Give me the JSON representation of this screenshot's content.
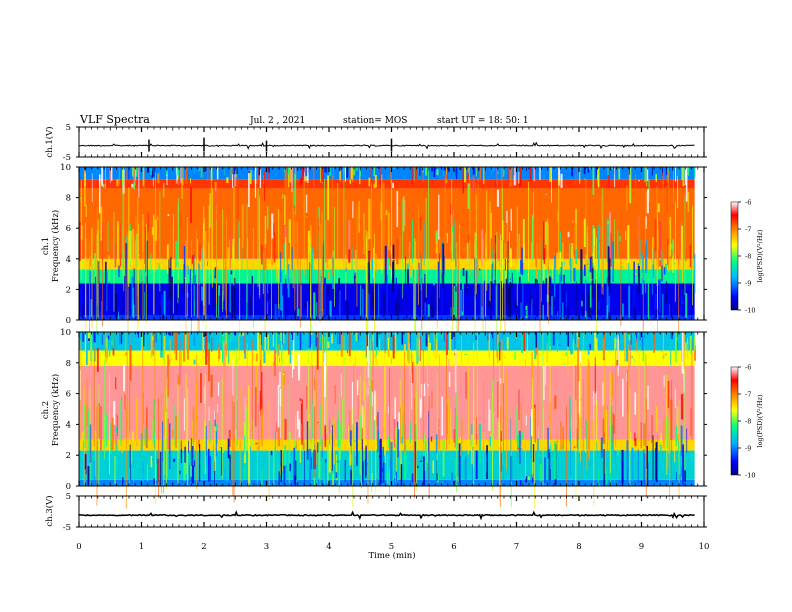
{
  "header": {
    "title": "VLF Spectra",
    "date": "Jul. 2 , 2021",
    "station": "station= MOS",
    "start": "start UT = 18: 50: 1"
  },
  "chart_data": [
    {
      "type": "line",
      "ylabel": "ch.1(V)",
      "ylim": [
        -5,
        5
      ],
      "y_tick_labels": [
        "5",
        "-5"
      ],
      "baseline_value": -1.2,
      "x": [
        0,
        10
      ]
    },
    {
      "type": "heatmap",
      "ylabel": "ch.1\nFrequency (kHz)",
      "ylim": [
        0,
        10
      ],
      "y_tick_labels": [
        "0",
        "2",
        "4",
        "6",
        "8",
        "10"
      ],
      "colorbar": {
        "label": "log(PSD)(V²/Hz)",
        "range": [
          -10,
          -6
        ],
        "tick_labels": [
          "-6",
          "-7",
          "-8",
          "-9",
          "-10"
        ]
      },
      "bands": [
        {
          "from_khz": 0.0,
          "to_khz": 0.3,
          "level": -9.3
        },
        {
          "from_khz": 0.3,
          "to_khz": 2.4,
          "level": -9.6
        },
        {
          "from_khz": 2.4,
          "to_khz": 3.3,
          "level": -8.3
        },
        {
          "from_khz": 3.3,
          "to_khz": 4.0,
          "level": -7.4
        },
        {
          "from_khz": 4.0,
          "to_khz": 8.6,
          "level": -6.9
        },
        {
          "from_khz": 8.6,
          "to_khz": 9.2,
          "level": -6.7
        },
        {
          "from_khz": 9.2,
          "to_khz": 10.0,
          "level": -9.0
        }
      ]
    },
    {
      "type": "heatmap",
      "ylabel": "ch.2\nFrequency (kHz)",
      "ylim": [
        0,
        10
      ],
      "y_tick_labels": [
        "0",
        "2",
        "4",
        "6",
        "8",
        "10"
      ],
      "colorbar": {
        "label": "log(PSD)(V²/Hz)",
        "range": [
          -10,
          -6
        ],
        "tick_labels": [
          "-6",
          "-7",
          "-8",
          "-9",
          "-10"
        ]
      },
      "bands": [
        {
          "from_khz": 0.0,
          "to_khz": 0.4,
          "level": -9.0
        },
        {
          "from_khz": 0.4,
          "to_khz": 2.3,
          "level": -8.6
        },
        {
          "from_khz": 2.3,
          "to_khz": 3.0,
          "level": -7.4
        },
        {
          "from_khz": 3.0,
          "to_khz": 7.8,
          "level": -6.2
        },
        {
          "from_khz": 7.8,
          "to_khz": 8.8,
          "level": -7.6
        },
        {
          "from_khz": 8.8,
          "to_khz": 10.0,
          "level": -8.7
        }
      ]
    },
    {
      "type": "line",
      "ylabel": "ch.3(V)",
      "ylim": [
        -5,
        5
      ],
      "y_tick_labels": [
        "5",
        "-5"
      ],
      "baseline_value": -1.2,
      "x": [
        0,
        10
      ]
    }
  ],
  "x_axis": {
    "label": "Time (min)",
    "range": [
      0,
      10
    ],
    "tick_labels": [
      "0",
      "1",
      "2",
      "3",
      "4",
      "5",
      "6",
      "7",
      "8",
      "9",
      "10"
    ],
    "data_end": 9.85
  }
}
